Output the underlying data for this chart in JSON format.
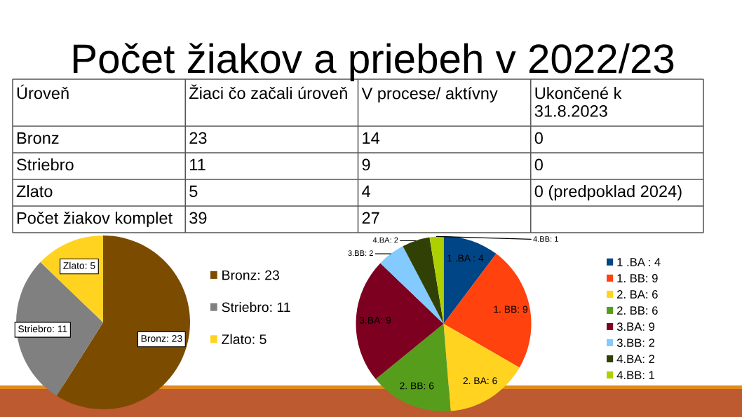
{
  "chart_data": [
    {
      "type": "other",
      "title": "Počet žiakov a priebeh v 2022/23",
      "ylabel": "Úroveň",
      "categories": [
        "Žiaci čo začali úroveň",
        "V procese/ aktívny",
        "Ukončené k 31.8.2023"
      ],
      "y_categories": [
        "Bronz",
        "Striebro",
        "Zlato",
        "Počet žiakov komplet"
      ],
      "cell_labels": [
        [
          "23",
          "14",
          "0"
        ],
        [
          "11",
          "9",
          "0"
        ],
        [
          "5",
          "4",
          "0 (predpoklad 2024)"
        ],
        [
          "39",
          "27",
          null
        ]
      ]
    },
    {
      "type": "pie",
      "categories": [
        "Bronz: 23",
        "Striebro: 11",
        "Zlato: 5"
      ],
      "values": [
        23,
        11,
        5
      ],
      "colors": [
        "#7b4c00",
        "#808080",
        "#ffd320"
      ],
      "value_labels": [
        "Bronz: 23",
        "Striebro: 11",
        "Zlato: 5"
      ],
      "legend": "right"
    },
    {
      "type": "pie",
      "categories": [
        "1 .BA : 4",
        "1. BB: 9",
        "2. BA: 6",
        "2. BB: 6",
        "3.BA: 9",
        "3.BB: 2",
        "4.BA: 2",
        "4.BB: 1"
      ],
      "values": [
        4,
        9,
        6,
        6,
        9,
        2,
        2,
        1
      ],
      "colors": [
        "#004586",
        "#ff420e",
        "#ffd320",
        "#579d1c",
        "#7e0021",
        "#83caff",
        "#314004",
        "#aecf00"
      ],
      "value_labels": [
        "1 .BA : 4",
        "1. BB: 9",
        "2. BA: 6",
        "2. BB: 6",
        "3.BA: 9",
        "3.BB: 2",
        "4.BA: 2",
        "4.BB: 1"
      ],
      "legend": "right"
    }
  ]
}
